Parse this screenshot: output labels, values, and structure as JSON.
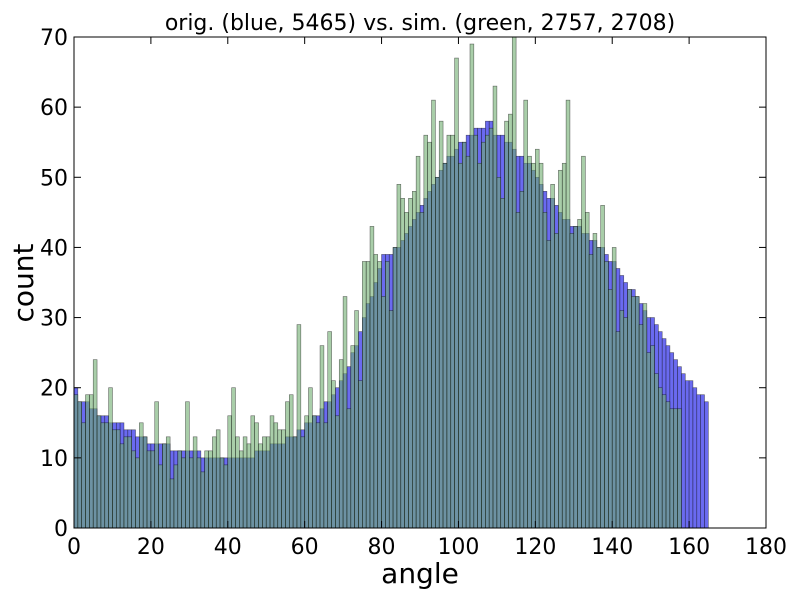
{
  "chart_data": {
    "type": "bar",
    "title": "orig. (blue, 5465) vs. sim. (green, 2757, 2708)",
    "xlabel": "angle",
    "ylabel": "count",
    "xlim": [
      0,
      180
    ],
    "ylim": [
      0,
      70
    ],
    "xticks": [
      "0",
      "20",
      "40",
      "60",
      "80",
      "100",
      "120",
      "140",
      "160",
      "180"
    ],
    "yticks": [
      "0",
      "10",
      "20",
      "30",
      "40",
      "50",
      "60",
      "70"
    ],
    "bin_width": 1,
    "grid": false,
    "overlay": true,
    "colors": {
      "blue": "#6a6af0",
      "green": "#70ad70",
      "overlap": "#2e8b6e",
      "edge": "#000000"
    },
    "series": [
      {
        "values": [
          20,
          18,
          18,
          18,
          17,
          17,
          16,
          16,
          16,
          15,
          15,
          15,
          15,
          14,
          14,
          14,
          13,
          13,
          13,
          12,
          12,
          12,
          12,
          12,
          12,
          11,
          11,
          11,
          11,
          11,
          11,
          11,
          11,
          10,
          10,
          10,
          10,
          10,
          10,
          10,
          10,
          10,
          10,
          10,
          10,
          10,
          10,
          11,
          11,
          11,
          11,
          12,
          12,
          12,
          12,
          13,
          13,
          13,
          14,
          14,
          15,
          15,
          16,
          16,
          17,
          18,
          18,
          19,
          20,
          21,
          22,
          23,
          25,
          26,
          28,
          30,
          32,
          33,
          35,
          37,
          39,
          39,
          39,
          40,
          40,
          41,
          42,
          43,
          44,
          45,
          46,
          47,
          48,
          49,
          50,
          51,
          52,
          53,
          53,
          54,
          55,
          55,
          56,
          56,
          57,
          57,
          57,
          58,
          58,
          56,
          56,
          56,
          55,
          55,
          54,
          53,
          53,
          52,
          52,
          51,
          50,
          49,
          48,
          47,
          47,
          46,
          45,
          44,
          44,
          43,
          43,
          43,
          42,
          42,
          41,
          41,
          40,
          40,
          39,
          38,
          38,
          37,
          36,
          35,
          34,
          34,
          33,
          32,
          31,
          30,
          30,
          29,
          28,
          27,
          26,
          25,
          24,
          23,
          22,
          21,
          21,
          20,
          19,
          19,
          18
        ]
      },
      {
        "values": [
          19,
          18,
          15,
          19,
          19,
          24,
          16,
          15,
          15,
          20,
          14,
          14,
          12,
          13,
          13,
          11,
          10,
          15,
          13,
          11,
          11,
          18,
          9,
          12,
          13,
          7,
          9,
          11,
          10,
          18,
          10,
          13,
          10,
          8,
          11,
          11,
          13,
          14,
          10,
          9,
          16,
          20,
          13,
          11,
          13,
          12,
          16,
          15,
          12,
          13,
          13,
          16,
          15,
          14,
          14,
          18,
          19,
          13,
          29,
          13,
          16,
          20,
          16,
          15,
          26,
          15,
          28,
          21,
          16,
          24,
          33,
          17,
          26,
          31,
          21,
          38,
          38,
          43,
          39,
          38,
          33,
          38,
          31,
          40,
          49,
          47,
          45,
          47,
          48,
          53,
          45,
          56,
          55,
          61,
          50,
          58,
          52,
          56,
          56,
          67,
          52,
          55,
          53,
          69,
          56,
          52,
          55,
          56,
          57,
          63,
          50,
          47,
          58,
          59,
          70,
          45,
          48,
          61,
          53,
          52,
          54,
          52,
          45,
          41,
          49,
          42,
          51,
          52,
          61,
          42,
          43,
          44,
          53,
          45,
          39,
          42,
          40,
          46,
          38,
          34,
          40,
          28,
          31,
          30,
          34,
          33,
          33,
          29,
          32,
          25,
          26,
          22,
          20,
          19,
          18,
          17,
          17,
          17
        ]
      }
    ]
  }
}
